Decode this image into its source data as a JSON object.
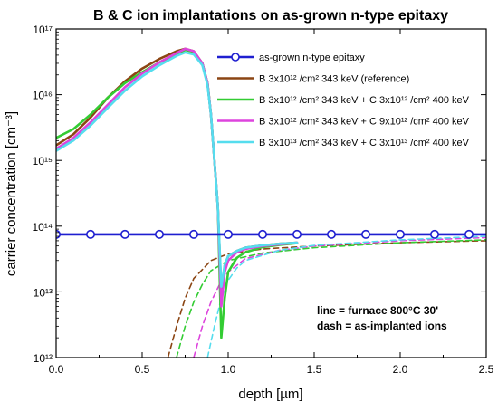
{
  "chart_data": {
    "type": "line",
    "title": "B & C ion implantations on as-grown n-type epitaxy",
    "xlabel": "depth [µm]",
    "ylabel": "carrier concentration [cm⁻³]",
    "xlim": [
      0,
      2.5
    ],
    "ylim": [
      1000000000000.0,
      1e+17
    ],
    "yscale": "log",
    "x_ticks": [
      "0.0",
      "0.5",
      "1.0",
      "1.5",
      "2.0",
      "2.5"
    ],
    "y_ticks": [
      "10¹²",
      "10¹³",
      "10¹⁴",
      "10¹⁵",
      "10¹⁶",
      "10¹⁷"
    ],
    "legend_position": "top-right",
    "annotation": [
      "line = furnace 800°C 30'",
      "dash = as-implanted ions"
    ],
    "series": [
      {
        "name": "as-grown n-type epitaxy",
        "style": "solid-circles",
        "color": "#1f1fd0",
        "x": [
          0,
          0.2,
          0.4,
          0.6,
          0.8,
          1.0,
          1.2,
          1.4,
          1.6,
          1.8,
          2.0,
          2.2,
          2.4,
          2.5
        ],
        "y": [
          75000000000000.0,
          75000000000000.0,
          75000000000000.0,
          75000000000000.0,
          75000000000000.0,
          75000000000000.0,
          75000000000000.0,
          75000000000000.0,
          75000000000000.0,
          75000000000000.0,
          75000000000000.0,
          75000000000000.0,
          75000000000000.0,
          75000000000000.0
        ]
      },
      {
        "name": "B 3x10¹² /cm² 343 keV (reference)",
        "style": "solid",
        "color": "#8b4513",
        "x": [
          0,
          0.1,
          0.2,
          0.3,
          0.4,
          0.5,
          0.6,
          0.7,
          0.75,
          0.8,
          0.85,
          0.88,
          0.9,
          0.92,
          0.94,
          0.96,
          0.98,
          1.0,
          1.05,
          1.1,
          1.2,
          1.3,
          1.4
        ],
        "y": [
          1700000000000000.0,
          2500000000000000.0,
          4500000000000000.0,
          9000000000000000.0,
          1.6e+16,
          2.5e+16,
          3.5e+16,
          4.6e+16,
          5e+16,
          4.6e+16,
          3e+16,
          1.5e+16,
          5000000000000000.0,
          1000000000000000.0,
          200000000000000.0,
          10000000000000.0,
          25000000000000.0,
          35000000000000.0,
          42000000000000.0,
          47000000000000.0,
          51000000000000.0,
          54000000000000.0,
          56000000000000.0
        ]
      },
      {
        "name": "B 3x10¹² /cm² 343 keV + C 3x10¹² /cm² 400 keV",
        "style": "solid",
        "color": "#33cc33",
        "x": [
          0,
          0.1,
          0.2,
          0.3,
          0.4,
          0.5,
          0.6,
          0.7,
          0.75,
          0.8,
          0.85,
          0.88,
          0.9,
          0.92,
          0.94,
          0.96,
          0.98,
          1.0,
          1.05,
          1.1,
          1.2,
          1.3,
          1.4
        ],
        "y": [
          2200000000000000.0,
          3000000000000000.0,
          5000000000000000.0,
          9000000000000000.0,
          1.5e+16,
          2.2e+16,
          3.1e+16,
          4.2e+16,
          4.8e+16,
          4.5e+16,
          3e+16,
          1.5e+16,
          5000000000000000.0,
          1000000000000000.0,
          200000000000000.0,
          2000000000000.0,
          8000000000000.0,
          20000000000000.0,
          33000000000000.0,
          40000000000000.0,
          48000000000000.0,
          52000000000000.0,
          55000000000000.0
        ]
      },
      {
        "name": "B 3x10¹² /cm² 343 keV + C 9x10¹² /cm² 400 keV",
        "style": "solid",
        "color": "#dd44dd",
        "x": [
          0,
          0.1,
          0.2,
          0.3,
          0.4,
          0.5,
          0.6,
          0.7,
          0.75,
          0.8,
          0.85,
          0.88,
          0.9,
          0.92,
          0.94,
          0.96,
          0.98,
          1.0,
          1.05,
          1.1,
          1.2,
          1.3,
          1.4
        ],
        "y": [
          1500000000000000.0,
          2200000000000000.0,
          3800000000000000.0,
          7000000000000000.0,
          1.3e+16,
          2.1e+16,
          3.1e+16,
          4.3e+16,
          5e+16,
          4.6e+16,
          3e+16,
          1.5e+16,
          5000000000000000.0,
          1000000000000000.0,
          200000000000000.0,
          6000000000000.0,
          20000000000000.0,
          30000000000000.0,
          40000000000000.0,
          45000000000000.0,
          50000000000000.0,
          53000000000000.0,
          56000000000000.0
        ]
      },
      {
        "name": "B 3x10¹³ /cm² 343 keV + C 3x10¹³ /cm² 400 keV",
        "style": "solid",
        "color": "#55ddee",
        "x": [
          0,
          0.1,
          0.2,
          0.3,
          0.4,
          0.5,
          0.6,
          0.7,
          0.75,
          0.8,
          0.85,
          0.88,
          0.9,
          0.92,
          0.94,
          0.96,
          0.98,
          1.0,
          1.05,
          1.1,
          1.2,
          1.3,
          1.4
        ],
        "y": [
          1400000000000000.0,
          2000000000000000.0,
          3400000000000000.0,
          6300000000000000.0,
          1.15e+16,
          1.9e+16,
          2.8e+16,
          3.9e+16,
          4.4e+16,
          4.1e+16,
          2.8e+16,
          1.4e+16,
          5000000000000000.0,
          1000000000000000.0,
          200000000000000.0,
          12000000000000.0,
          26000000000000.0,
          35000000000000.0,
          42000000000000.0,
          47000000000000.0,
          51000000000000.0,
          54000000000000.0,
          56000000000000.0
        ]
      },
      {
        "name": "",
        "style": "dashed",
        "color": "#8b4513",
        "x": [
          0.65,
          0.7,
          0.75,
          0.8,
          0.9,
          1.0,
          1.2,
          1.5,
          2.0,
          2.5
        ],
        "y": [
          1000000000000.0,
          3000000000000.0,
          8000000000000.0,
          16000000000000.0,
          30000000000000.0,
          38000000000000.0,
          45000000000000.0,
          50000000000000.0,
          56000000000000.0,
          60000000000000.0
        ]
      },
      {
        "name": "",
        "style": "dashed",
        "color": "#33cc33",
        "x": [
          0.7,
          0.75,
          0.8,
          0.85,
          0.9,
          1.0,
          1.2,
          1.5,
          2.0,
          2.5
        ],
        "y": [
          1000000000000.0,
          3000000000000.0,
          7000000000000.0,
          13000000000000.0,
          21000000000000.0,
          30000000000000.0,
          39000000000000.0,
          47000000000000.0,
          56000000000000.0,
          62000000000000.0
        ]
      },
      {
        "name": "",
        "style": "dashed",
        "color": "#dd44dd",
        "x": [
          0.8,
          0.85,
          0.9,
          0.95,
          1.0,
          1.1,
          1.3,
          1.5,
          2.0,
          2.5
        ],
        "y": [
          1000000000000.0,
          3000000000000.0,
          7000000000000.0,
          13000000000000.0,
          20000000000000.0,
          32000000000000.0,
          43000000000000.0,
          50000000000000.0,
          60000000000000.0,
          67000000000000.0
        ]
      },
      {
        "name": "",
        "style": "dashed",
        "color": "#55ddee",
        "x": [
          0.88,
          0.92,
          0.96,
          1.0,
          1.05,
          1.1,
          1.3,
          1.5,
          2.0,
          2.5
        ],
        "y": [
          1000000000000.0,
          3000000000000.0,
          8000000000000.0,
          15000000000000.0,
          23000000000000.0,
          30000000000000.0,
          43000000000000.0,
          51000000000000.0,
          62000000000000.0,
          70000000000000.0
        ]
      }
    ]
  }
}
